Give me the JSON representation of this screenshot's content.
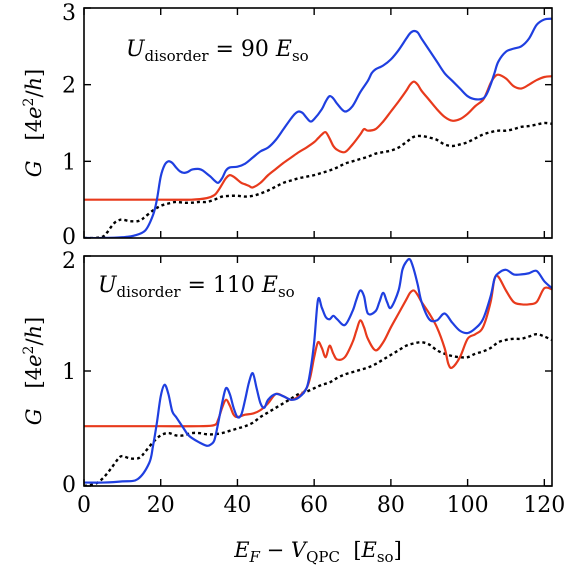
{
  "chart_data": [
    {
      "type": "line",
      "annotation": "U_disorder = 90 E_so",
      "annotation_parts": {
        "base": "U",
        "sub": "disorder",
        "rest": " = 90 ",
        "unit": "E",
        "unit_sub": "so"
      },
      "ylabel": "G  [4e²/h]",
      "ylabel_parts": {
        "G": "G",
        "pre": "[4",
        "e": "e",
        "sup": "2",
        "slash": "/",
        "h": "h",
        "post": "]"
      },
      "xlim": [
        0,
        122
      ],
      "ylim": [
        0,
        3
      ],
      "yticks": [
        "0",
        "1",
        "2",
        "3"
      ],
      "series": [
        {
          "color": "#1f3fe0",
          "style": "solid",
          "x": [
            0,
            5,
            10,
            13,
            16,
            18,
            19,
            20,
            21,
            22,
            23,
            24,
            25,
            26,
            27,
            28,
            29,
            30,
            31,
            32,
            33,
            34,
            35,
            36,
            37,
            38,
            40,
            42,
            44,
            46,
            48,
            50,
            52,
            54,
            55,
            56,
            57,
            58,
            59,
            60,
            62,
            63,
            64,
            65,
            66,
            68,
            70,
            72,
            74,
            75,
            76,
            78,
            80,
            82,
            84,
            85,
            86,
            87,
            88,
            90,
            92,
            94,
            96,
            98,
            100,
            102,
            104,
            105,
            106,
            107,
            108,
            110,
            112,
            114,
            116,
            118,
            120,
            122
          ],
          "y": [
            0,
            0,
            0.01,
            0.03,
            0.1,
            0.3,
            0.5,
            0.8,
            0.95,
            1.0,
            0.98,
            0.92,
            0.87,
            0.85,
            0.86,
            0.89,
            0.9,
            0.9,
            0.88,
            0.84,
            0.8,
            0.75,
            0.72,
            0.78,
            0.88,
            0.92,
            0.93,
            0.97,
            1.05,
            1.13,
            1.18,
            1.28,
            1.42,
            1.56,
            1.62,
            1.65,
            1.63,
            1.57,
            1.52,
            1.55,
            1.68,
            1.78,
            1.85,
            1.82,
            1.75,
            1.65,
            1.72,
            1.9,
            2.05,
            2.15,
            2.2,
            2.25,
            2.33,
            2.45,
            2.6,
            2.67,
            2.7,
            2.68,
            2.6,
            2.45,
            2.3,
            2.15,
            2.05,
            1.95,
            1.85,
            1.81,
            1.82,
            1.88,
            2.0,
            2.15,
            2.3,
            2.43,
            2.47,
            2.5,
            2.6,
            2.78,
            2.85,
            2.86
          ]
        },
        {
          "color": "#e83a1c",
          "style": "solid",
          "x": [
            0,
            10,
            20,
            28,
            32,
            34,
            35,
            36,
            37,
            38,
            39,
            40,
            41,
            42,
            43,
            44,
            46,
            48,
            50,
            52,
            54,
            56,
            58,
            60,
            61,
            62,
            63,
            64,
            65,
            66,
            68,
            70,
            72,
            73,
            74,
            76,
            78,
            80,
            82,
            84,
            85,
            86,
            87,
            88,
            90,
            92,
            94,
            96,
            98,
            100,
            102,
            104,
            105,
            106,
            107,
            108,
            110,
            112,
            114,
            116,
            118,
            120,
            122
          ],
          "y": [
            0.5,
            0.5,
            0.5,
            0.5,
            0.52,
            0.56,
            0.62,
            0.7,
            0.78,
            0.82,
            0.8,
            0.76,
            0.72,
            0.7,
            0.68,
            0.66,
            0.72,
            0.82,
            0.9,
            0.98,
            1.05,
            1.12,
            1.18,
            1.25,
            1.3,
            1.35,
            1.38,
            1.3,
            1.2,
            1.15,
            1.12,
            1.22,
            1.35,
            1.42,
            1.4,
            1.42,
            1.52,
            1.65,
            1.78,
            1.92,
            2.0,
            2.04,
            2.0,
            1.92,
            1.8,
            1.68,
            1.58,
            1.53,
            1.55,
            1.62,
            1.72,
            1.8,
            1.9,
            2.02,
            2.1,
            2.13,
            2.08,
            1.98,
            1.95,
            2.0,
            2.06,
            2.1,
            2.11
          ]
        },
        {
          "color": "#000000",
          "style": "dotted",
          "x": [
            0,
            3,
            5,
            6,
            7,
            8,
            9,
            10,
            12,
            14,
            15,
            16,
            18,
            20,
            22,
            24,
            26,
            28,
            30,
            32,
            34,
            36,
            38,
            40,
            42,
            44,
            46,
            48,
            50,
            52,
            54,
            56,
            58,
            60,
            62,
            64,
            66,
            68,
            70,
            72,
            74,
            76,
            78,
            80,
            82,
            84,
            86,
            88,
            90,
            92,
            94,
            96,
            98,
            100,
            102,
            104,
            106,
            108,
            110,
            112,
            114,
            116,
            118,
            120,
            122
          ],
          "y": [
            0,
            0,
            0.02,
            0.07,
            0.14,
            0.2,
            0.23,
            0.24,
            0.22,
            0.22,
            0.24,
            0.28,
            0.36,
            0.42,
            0.45,
            0.47,
            0.46,
            0.46,
            0.47,
            0.47,
            0.5,
            0.54,
            0.55,
            0.55,
            0.54,
            0.55,
            0.58,
            0.62,
            0.67,
            0.72,
            0.75,
            0.78,
            0.8,
            0.82,
            0.85,
            0.88,
            0.92,
            0.97,
            1.0,
            1.03,
            1.06,
            1.1,
            1.12,
            1.14,
            1.18,
            1.25,
            1.32,
            1.33,
            1.31,
            1.28,
            1.22,
            1.2,
            1.22,
            1.25,
            1.3,
            1.35,
            1.38,
            1.4,
            1.4,
            1.42,
            1.45,
            1.46,
            1.48,
            1.5,
            1.49
          ]
        }
      ]
    },
    {
      "type": "line",
      "annotation": "U_disorder = 110 E_so",
      "annotation_parts": {
        "base": "U",
        "sub": "disorder",
        "rest": " = 110 ",
        "unit": "E",
        "unit_sub": "so"
      },
      "ylabel": "G  [4e²/h]",
      "ylabel_parts": {
        "G": "G",
        "pre": "[4",
        "e": "e",
        "sup": "2",
        "slash": "/",
        "h": "h",
        "post": "]"
      },
      "xlabel": "E_F − V_QPC  [E_so]",
      "xlabel_parts": {
        "E": "E",
        "E_sub": "F",
        "minus": " − ",
        "V": "V",
        "V_sub": "QPC",
        "pre": "  [",
        "unit": "E",
        "unit_sub": "so",
        "post": "]"
      },
      "xlim": [
        0,
        122
      ],
      "ylim": [
        0,
        2
      ],
      "yticks": [
        "0",
        "1",
        "2"
      ],
      "xticks": [
        "0",
        "20",
        "40",
        "60",
        "80",
        "100",
        "120"
      ],
      "series": [
        {
          "color": "#1f3fe0",
          "style": "solid",
          "x": [
            0,
            5,
            10,
            14,
            17,
            18,
            19,
            20,
            21,
            22,
            23,
            24,
            25,
            26,
            27,
            28,
            30,
            32,
            33,
            34,
            35,
            36,
            37,
            38,
            39,
            40,
            41,
            42,
            43,
            44,
            45,
            46,
            47,
            48,
            50,
            52,
            54,
            56,
            58,
            59,
            60,
            61,
            62,
            63,
            64,
            65,
            66,
            68,
            70,
            71,
            72,
            73,
            74,
            76,
            77,
            78,
            79,
            80,
            82,
            83,
            84,
            85,
            86,
            87,
            88,
            90,
            92,
            94,
            96,
            98,
            100,
            102,
            104,
            106,
            107,
            108,
            110,
            112,
            114,
            116,
            118,
            120,
            122
          ],
          "y": [
            0.03,
            0.03,
            0.04,
            0.06,
            0.2,
            0.35,
            0.55,
            0.78,
            0.88,
            0.8,
            0.65,
            0.6,
            0.55,
            0.5,
            0.45,
            0.42,
            0.38,
            0.35,
            0.36,
            0.4,
            0.55,
            0.72,
            0.85,
            0.8,
            0.68,
            0.6,
            0.62,
            0.75,
            0.9,
            0.98,
            0.85,
            0.72,
            0.68,
            0.75,
            0.8,
            0.78,
            0.75,
            0.77,
            0.85,
            1.0,
            1.25,
            1.62,
            1.55,
            1.47,
            1.45,
            1.48,
            1.45,
            1.4,
            1.52,
            1.62,
            1.7,
            1.65,
            1.5,
            1.52,
            1.6,
            1.68,
            1.6,
            1.55,
            1.7,
            1.88,
            1.95,
            1.97,
            1.88,
            1.75,
            1.6,
            1.45,
            1.44,
            1.5,
            1.42,
            1.35,
            1.33,
            1.37,
            1.45,
            1.65,
            1.8,
            1.85,
            1.88,
            1.84,
            1.84,
            1.85,
            1.87,
            1.78,
            1.72
          ]
        },
        {
          "color": "#e83a1c",
          "style": "solid",
          "x": [
            0,
            10,
            20,
            30,
            34,
            35,
            36,
            37,
            38,
            39,
            40,
            42,
            44,
            46,
            48,
            50,
            52,
            54,
            56,
            58,
            59,
            60,
            61,
            62,
            63,
            64,
            65,
            66,
            68,
            70,
            71,
            72,
            73,
            74,
            76,
            78,
            80,
            82,
            84,
            85,
            86,
            87,
            88,
            90,
            92,
            94,
            95,
            96,
            98,
            100,
            102,
            104,
            106,
            107,
            108,
            110,
            112,
            114,
            116,
            118,
            120,
            122
          ],
          "y": [
            0.52,
            0.52,
            0.52,
            0.52,
            0.53,
            0.58,
            0.68,
            0.75,
            0.7,
            0.62,
            0.6,
            0.62,
            0.63,
            0.66,
            0.72,
            0.8,
            0.78,
            0.75,
            0.78,
            0.85,
            0.95,
            1.12,
            1.25,
            1.2,
            1.12,
            1.22,
            1.15,
            1.1,
            1.12,
            1.25,
            1.35,
            1.44,
            1.38,
            1.28,
            1.18,
            1.25,
            1.38,
            1.5,
            1.62,
            1.68,
            1.7,
            1.66,
            1.6,
            1.5,
            1.38,
            1.2,
            1.06,
            1.03,
            1.12,
            1.28,
            1.32,
            1.38,
            1.6,
            1.8,
            1.82,
            1.7,
            1.6,
            1.58,
            1.58,
            1.6,
            1.72,
            1.71
          ]
        },
        {
          "color": "#000000",
          "style": "dotted",
          "x": [
            0,
            3,
            5,
            7,
            9,
            10,
            12,
            14,
            15,
            16,
            18,
            20,
            22,
            24,
            26,
            28,
            30,
            32,
            34,
            36,
            38,
            40,
            42,
            44,
            46,
            48,
            50,
            52,
            54,
            56,
            58,
            60,
            62,
            64,
            66,
            68,
            70,
            72,
            74,
            76,
            78,
            80,
            82,
            84,
            86,
            88,
            90,
            92,
            94,
            96,
            98,
            100,
            102,
            104,
            106,
            108,
            110,
            112,
            114,
            116,
            118,
            120,
            122
          ],
          "y": [
            0.0,
            0.02,
            0.07,
            0.15,
            0.24,
            0.26,
            0.24,
            0.24,
            0.26,
            0.3,
            0.38,
            0.44,
            0.46,
            0.44,
            0.44,
            0.46,
            0.46,
            0.45,
            0.45,
            0.46,
            0.48,
            0.5,
            0.52,
            0.55,
            0.6,
            0.64,
            0.68,
            0.72,
            0.76,
            0.8,
            0.82,
            0.85,
            0.88,
            0.9,
            0.94,
            0.97,
            0.99,
            1.01,
            1.03,
            1.06,
            1.1,
            1.14,
            1.18,
            1.22,
            1.24,
            1.25,
            1.23,
            1.18,
            1.15,
            1.13,
            1.12,
            1.12,
            1.15,
            1.17,
            1.2,
            1.25,
            1.27,
            1.28,
            1.28,
            1.3,
            1.32,
            1.3,
            1.27
          ]
        }
      ]
    }
  ]
}
